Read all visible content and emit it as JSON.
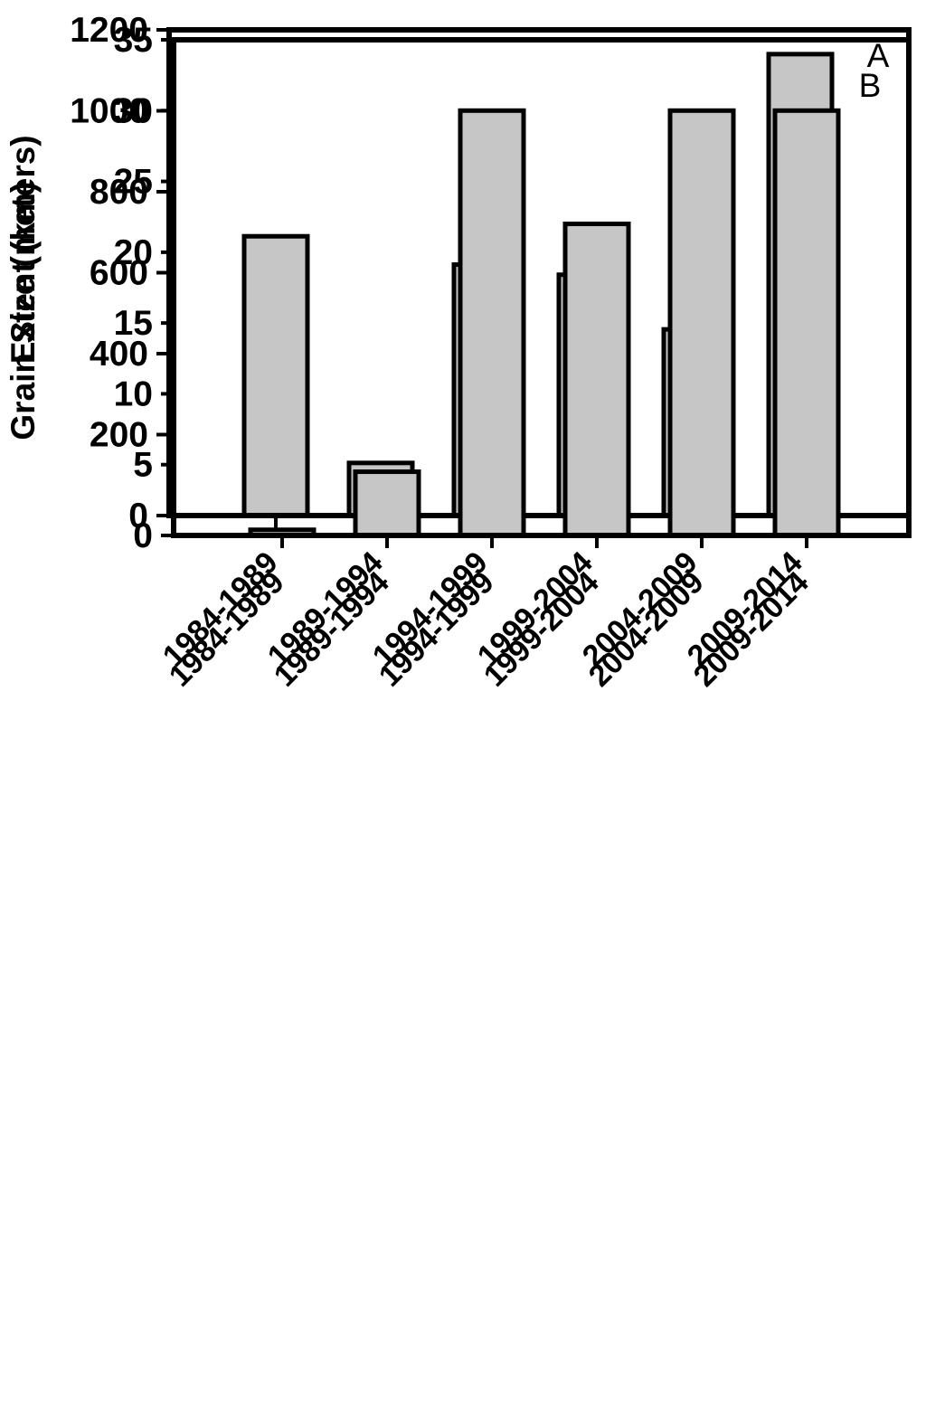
{
  "figure": {
    "background": "#ffffff",
    "axis_color": "#000000",
    "text_color": "#000000"
  },
  "chart_data": [
    {
      "type": "bar",
      "panel_label": "A",
      "title": "",
      "xlabel": "",
      "ylabel": "Extent (km)",
      "categories": [
        "1984-1989",
        "1989-1994",
        "1994-1999",
        "1999-2004",
        "2004-2009",
        "2009-2014"
      ],
      "values": [
        690,
        130,
        620,
        595,
        460,
        1140
      ],
      "ylim": [
        0,
        1200
      ],
      "yticks": [
        0,
        200,
        400,
        600,
        800,
        1000,
        1200
      ],
      "bar_color": "#c6c6c6",
      "bar_edge_color": "#000000",
      "grid": false,
      "legend": "none",
      "x_tick_label_rotation_deg": -45
    },
    {
      "type": "bar",
      "panel_label": "B",
      "title": "",
      "xlabel": "",
      "ylabel": "Grain Size (meters)",
      "categories": [
        "1984-1989",
        "1989-1994",
        "1994-1999",
        "1999-2004",
        "2004-2009",
        "2009-2014"
      ],
      "values": [
        0.4,
        4.5,
        30,
        22,
        30,
        30
      ],
      "ylim": [
        0,
        35
      ],
      "yticks": [
        0,
        5,
        10,
        15,
        20,
        25,
        30,
        35
      ],
      "bar_color": "#c6c6c6",
      "bar_edge_color": "#000000",
      "grid": false,
      "legend": "none",
      "x_tick_label_rotation_deg": -45
    }
  ]
}
